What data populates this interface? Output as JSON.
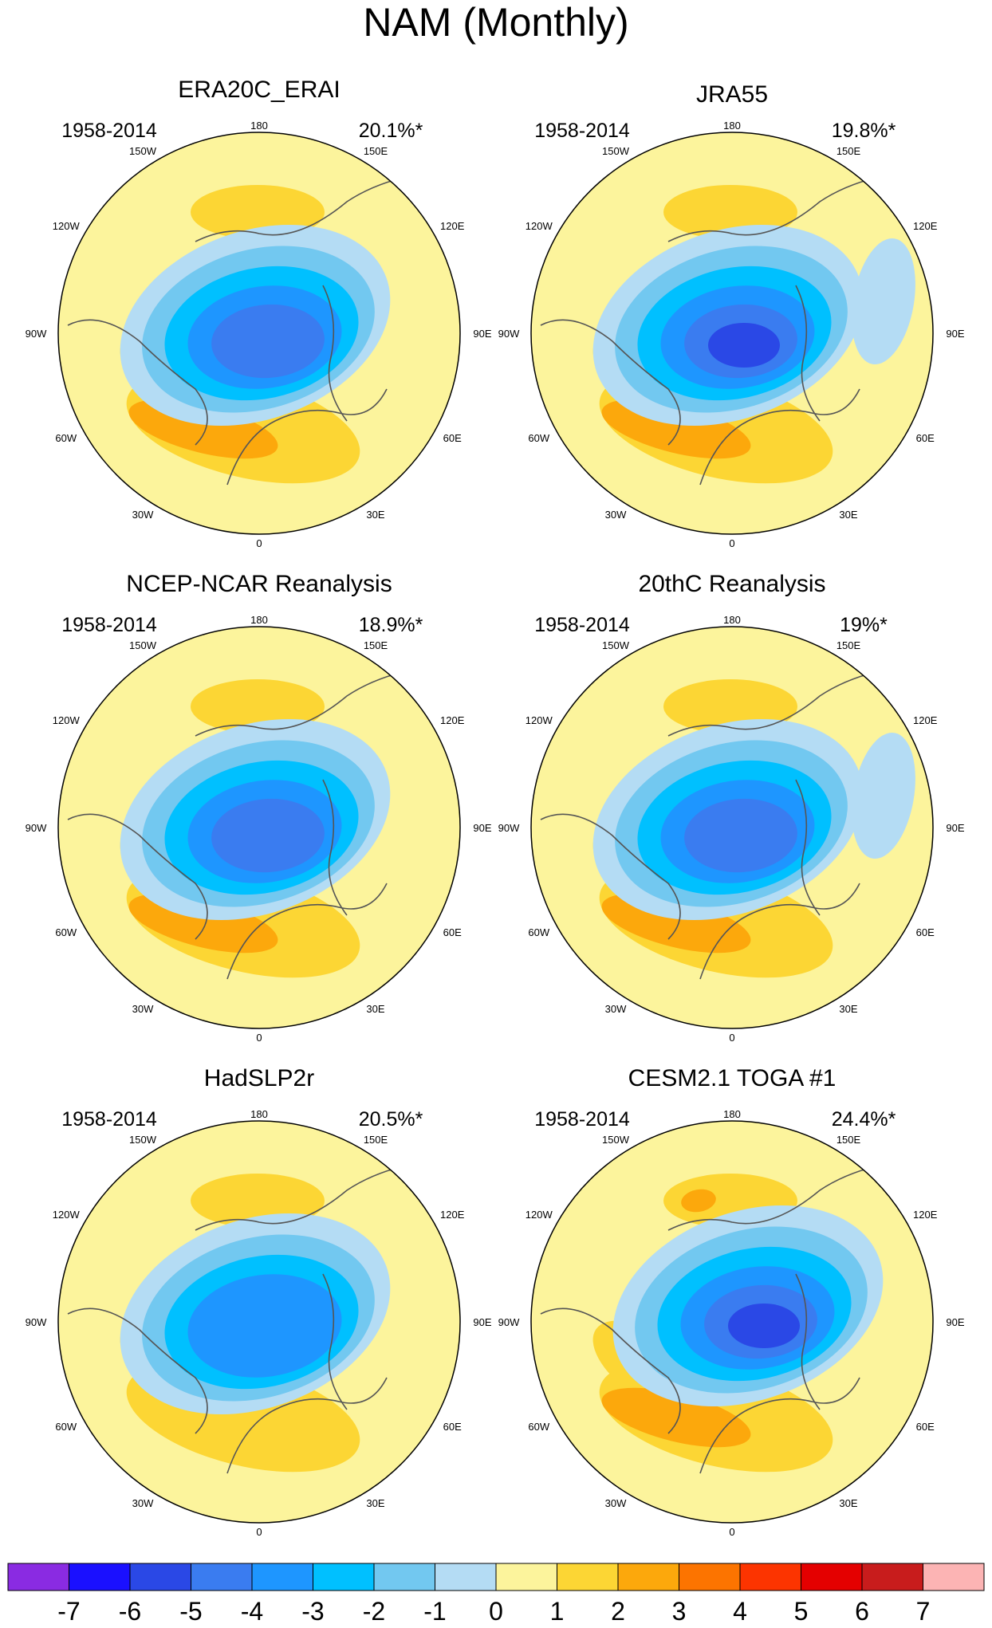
{
  "figure_title": "NAM (Monthly)",
  "panels": [
    {
      "title": "ERA20C_ERAI",
      "period": "1958-2014",
      "variance": "20.1%*",
      "min_level": -5,
      "max_level": 3
    },
    {
      "title": "JRA55",
      "period": "1958-2014",
      "variance": "19.8%*",
      "min_level": -6,
      "max_level": 3
    },
    {
      "title": "NCEP-NCAR Reanalysis",
      "period": "1958-2014",
      "variance": "18.9%*",
      "min_level": -5,
      "max_level": 3
    },
    {
      "title": "20thC Reanalysis",
      "period": "1958-2014",
      "variance": "19%*",
      "min_level": -5,
      "max_level": 3
    },
    {
      "title": "HadSLP2r",
      "period": "1958-2014",
      "variance": "20.5%*",
      "min_level": -4,
      "max_level": 2
    },
    {
      "title": "CESM2.1 TOGA #1",
      "period": "1958-2014",
      "variance": "24.4%*",
      "min_level": -6,
      "max_level": 3
    }
  ],
  "longitude_labels": {
    "top": "180",
    "bottom": "0",
    "left": "90W",
    "right": "90E",
    "upper_left": [
      "150W",
      "120W"
    ],
    "upper_right": [
      "150E",
      "120E"
    ],
    "lower_left": [
      "60W",
      "30W"
    ],
    "lower_right": [
      "60E",
      "30E"
    ]
  },
  "colorbar": {
    "labels": [
      "-7",
      "-6",
      "-5",
      "-4",
      "-3",
      "-2",
      "-1",
      "0",
      "1",
      "2",
      "3",
      "4",
      "5",
      "6",
      "7"
    ],
    "colors": [
      "#8a2be2",
      "#1a10ff",
      "#2a48e6",
      "#3a7cf0",
      "#1e96ff",
      "#00c0ff",
      "#72c8f0",
      "#b4dcf4",
      "#fcf49c",
      "#fcd634",
      "#fca80c",
      "#fc7400",
      "#fc3400",
      "#e40000",
      "#c81c1c",
      "#fcb4b4"
    ]
  },
  "chart_data": {
    "type": "heatmap",
    "title": "NAM (Monthly)",
    "projection": "north polar stereographic",
    "contour_levels": [
      -7,
      -6,
      -5,
      -4,
      -3,
      -2,
      -1,
      0,
      1,
      2,
      3,
      4,
      5,
      6,
      7
    ]
  }
}
